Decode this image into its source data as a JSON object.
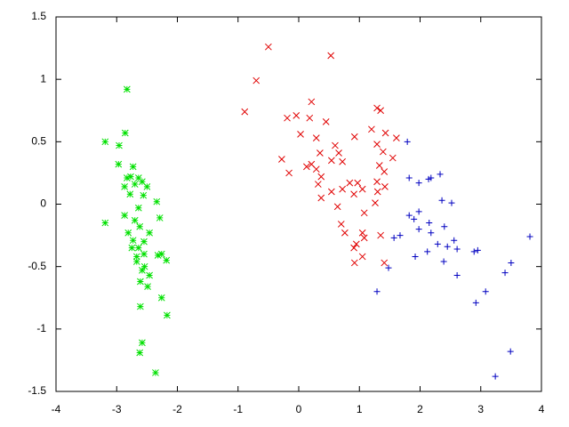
{
  "chart_data": {
    "type": "scatter",
    "xlim": [
      -4,
      4
    ],
    "xticks": [
      -4,
      -3,
      -2,
      -1,
      0,
      1,
      2,
      3,
      4
    ],
    "ylim": [
      -1.5,
      1.5
    ],
    "yticks": [
      -1.5,
      -1,
      -0.5,
      0,
      0.5,
      1,
      1.5
    ],
    "series": [
      {
        "color": "#00e000",
        "marker": "asterisk",
        "x": [
          -2.83,
          -3.19,
          -2.86,
          -2.96,
          -2.97,
          -2.73,
          -2.77,
          -2.83,
          -2.64,
          -2.58,
          -2.87,
          -2.7,
          -2.5,
          -2.78,
          -2.34,
          -2.64,
          -3.19,
          -2.87,
          -2.7,
          -2.29,
          -2.62,
          -2.81,
          -2.46,
          -2.73,
          -2.55,
          -2.75,
          -2.64,
          -2.55,
          -2.32,
          -2.26,
          -2.67,
          -2.18,
          -2.54,
          -2.58,
          -2.46,
          -2.61,
          -2.49,
          -2.26,
          -2.61,
          -2.17,
          -2.58,
          -2.62,
          -2.36,
          -2.67,
          -2.56
        ],
        "values": [
          0.92,
          0.5,
          0.57,
          0.47,
          0.32,
          0.3,
          0.22,
          0.21,
          0.21,
          0.18,
          0.14,
          0.16,
          0.14,
          0.08,
          0.02,
          -0.03,
          -0.15,
          -0.09,
          -0.13,
          -0.11,
          -0.18,
          -0.23,
          -0.23,
          -0.29,
          -0.3,
          -0.35,
          -0.35,
          -0.4,
          -0.41,
          -0.4,
          -0.42,
          -0.45,
          -0.5,
          -0.53,
          -0.57,
          -0.62,
          -0.66,
          -0.75,
          -0.82,
          -0.89,
          -1.11,
          -1.19,
          -1.35,
          -0.46,
          0.07
        ]
      },
      {
        "color": "#e00000",
        "marker": "cross",
        "x": [
          -0.5,
          0.53,
          -0.7,
          -0.89,
          0.21,
          1.35,
          1.29,
          -0.04,
          0.18,
          -0.19,
          0.45,
          1.2,
          0.03,
          0.92,
          1.43,
          1.61,
          0.29,
          1.29,
          0.6,
          0.66,
          0.35,
          1.39,
          1.55,
          -0.28,
          0.21,
          0.13,
          0.54,
          0.72,
          1.33,
          0.29,
          -0.16,
          1.41,
          0.37,
          0.84,
          1.29,
          0.97,
          0.32,
          0.72,
          1.05,
          0.54,
          1.3,
          1.42,
          0.91,
          0.37,
          1.26,
          0.64,
          1.08,
          0.7,
          1.05,
          1.35,
          0.76,
          1.08,
          0.95,
          0.91,
          0.92,
          1.41,
          1.05
        ],
        "values": [
          1.26,
          1.19,
          0.99,
          0.74,
          0.82,
          0.75,
          0.77,
          0.71,
          0.69,
          0.69,
          0.66,
          0.6,
          0.56,
          0.54,
          0.57,
          0.53,
          0.53,
          0.48,
          0.47,
          0.41,
          0.41,
          0.42,
          0.37,
          0.36,
          0.32,
          0.3,
          0.35,
          0.34,
          0.31,
          0.28,
          0.25,
          0.26,
          0.22,
          0.17,
          0.18,
          0.17,
          0.16,
          0.12,
          0.12,
          0.1,
          0.1,
          0.14,
          0.08,
          0.05,
          0.01,
          -0.02,
          -0.07,
          -0.16,
          -0.23,
          -0.25,
          -0.23,
          -0.27,
          -0.32,
          -0.35,
          -0.47,
          -0.47,
          -0.42
        ]
      },
      {
        "color": "#0000c0",
        "marker": "plus",
        "x": [
          1.79,
          2.33,
          1.82,
          1.98,
          2.14,
          2.18,
          2.36,
          2.52,
          1.82,
          1.98,
          1.9,
          2.15,
          2.4,
          1.98,
          1.67,
          1.57,
          2.18,
          2.56,
          3.81,
          2.45,
          2.29,
          2.61,
          2.89,
          2.95,
          2.12,
          1.92,
          2.39,
          3.5,
          1.48,
          3.4,
          2.61,
          3.08,
          1.29,
          2.92,
          3.49,
          3.24
        ],
        "values": [
          0.5,
          0.24,
          0.21,
          0.17,
          0.2,
          0.21,
          0.03,
          0.01,
          -0.09,
          -0.06,
          -0.12,
          -0.15,
          -0.18,
          -0.2,
          -0.25,
          -0.27,
          -0.23,
          -0.29,
          -0.26,
          -0.34,
          -0.32,
          -0.36,
          -0.38,
          -0.37,
          -0.38,
          -0.42,
          -0.46,
          -0.47,
          -0.51,
          -0.55,
          -0.57,
          -0.7,
          -0.7,
          -0.79,
          -1.18,
          -1.38
        ]
      }
    ]
  }
}
